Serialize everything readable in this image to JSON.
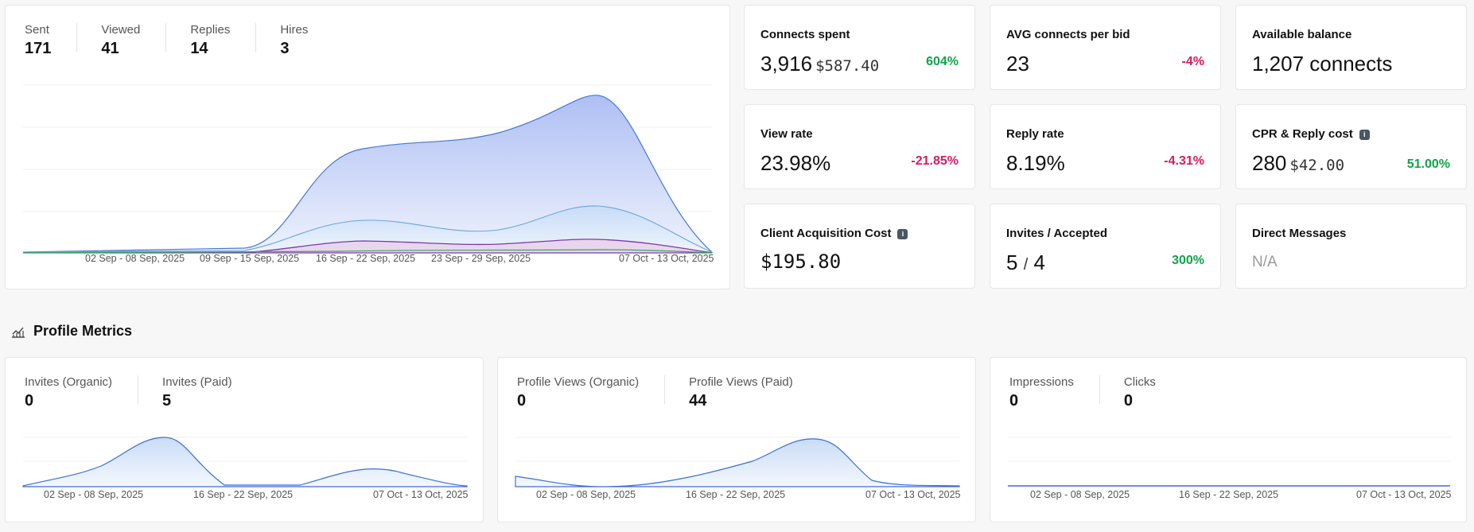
{
  "outreach": {
    "stats": [
      {
        "label": "Sent",
        "value": "171"
      },
      {
        "label": "Viewed",
        "value": "41"
      },
      {
        "label": "Replies",
        "value": "14"
      },
      {
        "label": "Hires",
        "value": "3"
      }
    ],
    "ticks": [
      "02 Sep - 08 Sep, 2025",
      "09 Sep - 15 Sep, 2025",
      "16 Sep - 22 Sep, 2025",
      "23 Sep - 29 Sep, 2025",
      "07 Oct - 13 Oct, 2025"
    ]
  },
  "metrics": {
    "connects_spent": {
      "title": "Connects spent",
      "value": "3,916",
      "sub": "$587.40",
      "delta": "604%"
    },
    "avg_connects": {
      "title": "AVG connects per bid",
      "value": "23",
      "delta": "-4%"
    },
    "available_balance": {
      "title": "Available balance",
      "value": "1,207 connects"
    },
    "view_rate": {
      "title": "View rate",
      "value": "23.98%",
      "delta": "-21.85%"
    },
    "reply_rate": {
      "title": "Reply rate",
      "value": "8.19%",
      "delta": "-4.31%"
    },
    "cpr": {
      "title": "CPR & Reply cost",
      "value": "280",
      "sub": "$42.00",
      "delta": "51.00%"
    },
    "cac": {
      "title": "Client Acquisition Cost",
      "value": "$195.80"
    },
    "invites": {
      "title": "Invites / Accepted",
      "value": "5",
      "sep": "/",
      "value2": "4",
      "delta": "300%"
    },
    "direct_messages": {
      "title": "Direct Messages",
      "value": "N/A"
    }
  },
  "section": {
    "title": "Profile Metrics"
  },
  "profile": {
    "invites": {
      "stats": [
        {
          "label": "Invites (Organic)",
          "value": "0"
        },
        {
          "label": "Invites (Paid)",
          "value": "5"
        }
      ],
      "ticks": [
        "02 Sep - 08 Sep, 2025",
        "16 Sep - 22 Sep, 2025",
        "07 Oct - 13 Oct, 2025"
      ]
    },
    "views": {
      "stats": [
        {
          "label": "Profile Views (Organic)",
          "value": "0"
        },
        {
          "label": "Profile Views (Paid)",
          "value": "44"
        }
      ],
      "ticks": [
        "02 Sep - 08 Sep, 2025",
        "16 Sep - 22 Sep, 2025",
        "07 Oct - 13 Oct, 2025"
      ]
    },
    "impressions": {
      "stats": [
        {
          "label": "Impressions",
          "value": "0"
        },
        {
          "label": "Clicks",
          "value": "0"
        }
      ],
      "ticks": [
        "02 Sep - 08 Sep, 2025",
        "16 Sep - 22 Sep, 2025",
        "07 Oct - 13 Oct, 2025"
      ]
    }
  },
  "colors": {
    "positive": "#11a34a",
    "negative": "#d81b60",
    "chart_line": "#3b6fd8"
  }
}
